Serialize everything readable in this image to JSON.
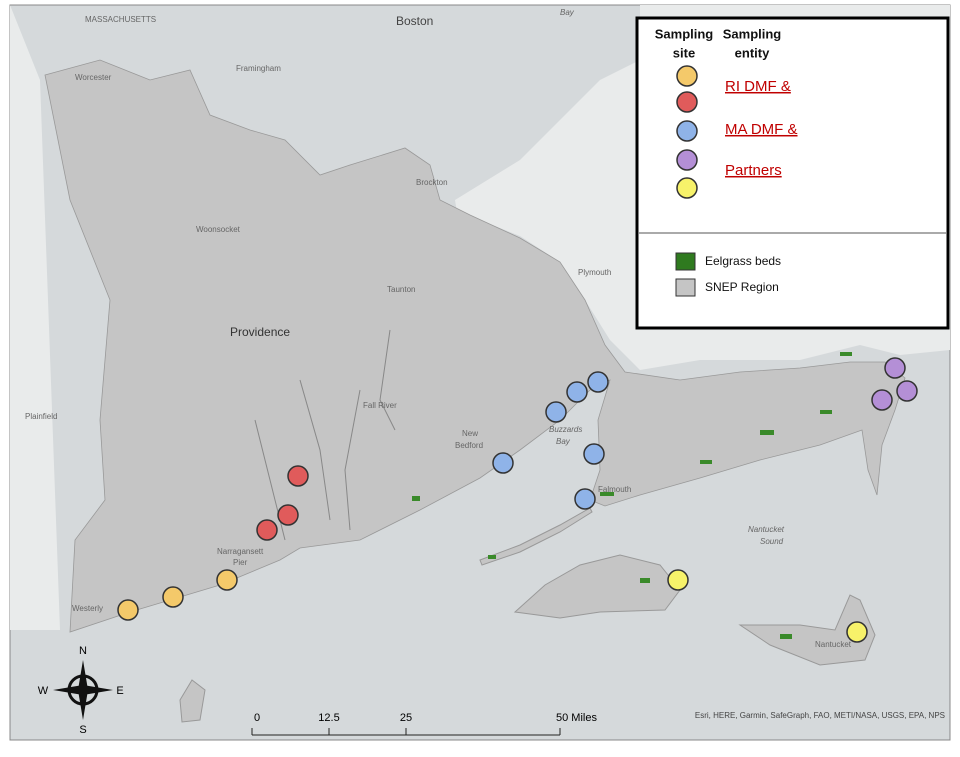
{
  "map": {
    "place_labels": [
      "MASSACHUSETTS",
      "Boston",
      "Bay",
      "Worcester",
      "Framingham",
      "Brockton",
      "Woonsocket",
      "Taunton",
      "Plymouth",
      "Providence",
      "Plainfield",
      "Fall River",
      "New",
      "Bedford",
      "Buzzards",
      "Bay",
      "Falmouth",
      "Narragansett",
      "Pier",
      "Westerly",
      "Nantucket",
      "Sound",
      "Nantucket"
    ],
    "legend": {
      "site_header": [
        "Sampling",
        "site"
      ],
      "entity_header": [
        "Sampling",
        "entity"
      ],
      "entities": [
        "RI DMF &",
        "MA DMF &",
        "Partners"
      ],
      "layers": [
        "Eelgrass beds",
        "SNEP Region"
      ]
    },
    "scale_bar": [
      "0",
      "12.5",
      "25",
      "50 Miles"
    ],
    "compass": [
      "N",
      "E",
      "S",
      "W"
    ],
    "attribution": "Esri, HERE, Garmin, SafeGraph, FAO, METI/NASA, USGS, EPA, NPS"
  }
}
